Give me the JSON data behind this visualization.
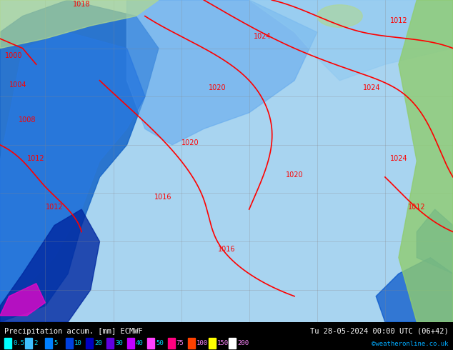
{
  "title_left": "Precipitation accum. [mm] ECMWF",
  "title_right": "Tu 28-05-2024 00:00 UTC (06+42)",
  "copyright": "©weatheronline.co.uk",
  "legend_values": [
    "0.5",
    "2",
    "5",
    "10",
    "20",
    "30",
    "40",
    "50",
    "75",
    "100",
    "150",
    "200"
  ],
  "legend_colors": [
    "#00ffff",
    "#00bfff",
    "#0080ff",
    "#0040ff",
    "#0000e0",
    "#8000ff",
    "#ff00ff",
    "#ff0080",
    "#ff0000",
    "#ff8000",
    "#ffff00",
    "#ffffff"
  ],
  "bg_color": "#c8e8ff",
  "map_bg": "#c8e8ff",
  "bottom_bar_color": "#000000",
  "bottom_text_color": "#ffffff",
  "legend_text_color": "#00ffff",
  "legend_text_color2": "#ff00ff",
  "figsize": [
    6.34,
    4.9
  ],
  "dpi": 100
}
